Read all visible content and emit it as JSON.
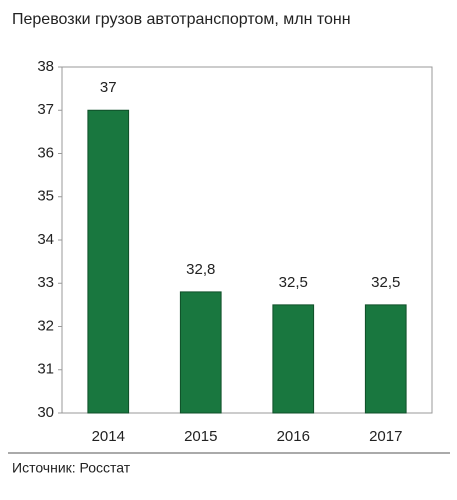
{
  "chart_data": {
    "type": "bar",
    "title": "Перевозки грузов автотранспортом, млн тонн",
    "categories": [
      "2014",
      "2015",
      "2016",
      "2017"
    ],
    "values": [
      37,
      32.8,
      32.5,
      32.5
    ],
    "value_labels": [
      "37",
      "32,8",
      "32,5",
      "32,5"
    ],
    "color": "#19773f",
    "ylim": [
      30,
      38
    ],
    "yticks": [
      30,
      31,
      32,
      33,
      34,
      35,
      36,
      37,
      38
    ],
    "source": "Источник: Росстат"
  }
}
